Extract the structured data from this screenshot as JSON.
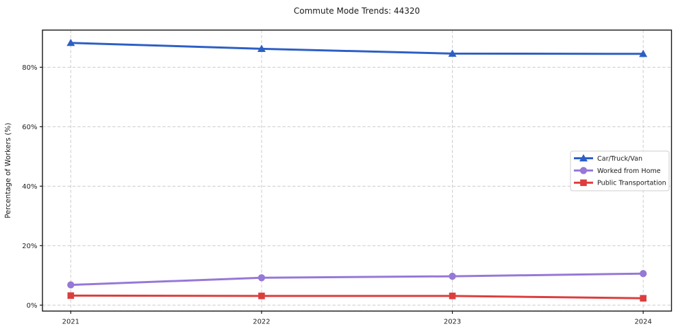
{
  "chart_data": {
    "type": "line",
    "title": "Commute Mode Trends: 44320",
    "xlabel": "",
    "ylabel": "Percentage of Workers (%)",
    "categories": [
      "2021",
      "2022",
      "2023",
      "2024"
    ],
    "series": [
      {
        "name": "Car/Truck/Van",
        "marker": "triangle",
        "color": "#2d5fc4",
        "values": [
          88.2,
          86.2,
          84.6,
          84.5
        ]
      },
      {
        "name": "Worked from Home",
        "marker": "circle",
        "color": "#9678d6",
        "values": [
          6.8,
          9.2,
          9.7,
          10.6
        ]
      },
      {
        "name": "Public Transportation",
        "marker": "square",
        "color": "#dd3d3d",
        "values": [
          3.2,
          3.1,
          3.1,
          2.3
        ]
      }
    ],
    "ylim": [
      -2,
      92.5
    ],
    "yticks": [
      {
        "value": 0,
        "label": "0%"
      },
      {
        "value": 20,
        "label": "20%"
      },
      {
        "value": 40,
        "label": "40%"
      },
      {
        "value": 60,
        "label": "60%"
      },
      {
        "value": 80,
        "label": "80%"
      }
    ],
    "grid": "both-dashed",
    "legend_position": "center-right"
  }
}
